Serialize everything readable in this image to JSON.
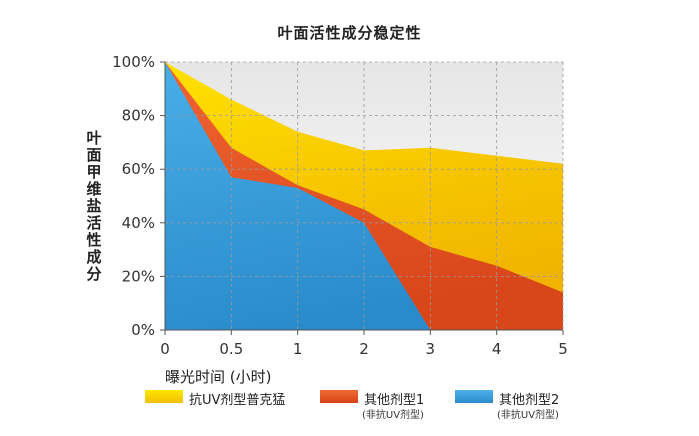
{
  "chart_data": {
    "type": "area",
    "title": "叶面活性成分稳定性",
    "xlabel": "曝光时间 (小时)",
    "ylabel": "叶面甲维盐活性成分",
    "x": [
      "0",
      "0.5",
      "1",
      "2",
      "3",
      "4",
      "5"
    ],
    "yticks": [
      "0%",
      "20%",
      "40%",
      "60%",
      "80%",
      "100%"
    ],
    "ylim": [
      0,
      100
    ],
    "grid": true,
    "legend_position": "bottom",
    "series": [
      {
        "name": "抗UV剂型普克猛",
        "sub": "",
        "color": "#f9d000",
        "values": [
          100,
          86,
          74,
          67,
          68,
          65,
          62
        ]
      },
      {
        "name": "其他剂型1",
        "sub": "(非抗UV剂型)",
        "color": "#e5552a",
        "values": [
          100,
          68,
          54,
          45,
          31,
          24,
          14
        ]
      },
      {
        "name": "其他剂型2",
        "sub": "(非抗UV剂型)",
        "color": "#3aa0dd",
        "values": [
          100,
          57,
          53,
          40,
          0,
          0,
          0
        ]
      }
    ]
  }
}
